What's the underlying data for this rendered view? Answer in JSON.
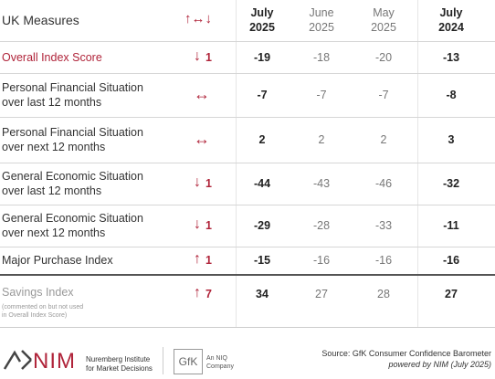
{
  "header": {
    "label": "UK Measures",
    "change_icon": "↑↔↓",
    "columns": [
      {
        "month": "July",
        "year": "2025"
      },
      {
        "month": "June",
        "year": "2025"
      },
      {
        "month": "May",
        "year": "2025"
      },
      {
        "month": "July",
        "year": "2024"
      }
    ]
  },
  "rows": [
    {
      "label": [
        "Overall Index Score"
      ],
      "direction": "↓",
      "change": 1,
      "values": [
        -19,
        -18,
        -20,
        -13
      ]
    },
    {
      "label": [
        "Personal Financial Situation",
        "over last 12 months"
      ],
      "direction": "↔",
      "change": null,
      "values": [
        -7,
        -7,
        -7,
        -8
      ]
    },
    {
      "label": [
        "Personal Financial Situation",
        "over next 12 months"
      ],
      "direction": "↔",
      "change": null,
      "values": [
        2,
        2,
        2,
        3
      ]
    },
    {
      "label": [
        "General Economic Situation",
        "over last 12 months"
      ],
      "direction": "↓",
      "change": 1,
      "values": [
        -44,
        -43,
        -46,
        -32
      ]
    },
    {
      "label": [
        "General Economic Situation",
        "over next 12 months"
      ],
      "direction": "↓",
      "change": 1,
      "values": [
        -29,
        -28,
        -33,
        -11
      ]
    },
    {
      "label": [
        "Major Purchase Index"
      ],
      "direction": "↑",
      "change": 1,
      "values": [
        -15,
        -16,
        -16,
        -16
      ]
    },
    {
      "label": [
        "Savings Index"
      ],
      "note": [
        "(commented on but not used",
        "in Overall Index Score)"
      ],
      "direction": "↑",
      "change": 7,
      "values": [
        34,
        27,
        28,
        27
      ]
    }
  ],
  "footer": {
    "nim_logo": "NIM",
    "nim_name": [
      "Nuremberg Institute",
      "for Market Decisions"
    ],
    "gfk_logo": "GfK",
    "gfk_sub": [
      "An NIQ",
      "Company"
    ],
    "source": "Source: GfK Consumer Confidence Barometer",
    "powered": "powered by NIM (July 2025)"
  }
}
